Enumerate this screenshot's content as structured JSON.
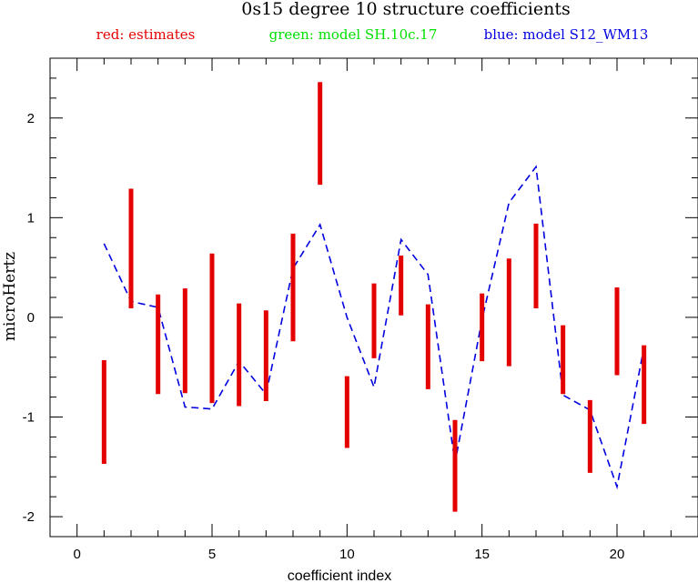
{
  "chart_data": {
    "type": "line",
    "title": "0s15 degree 10 structure coefficients",
    "legend": [
      {
        "text": "red: estimates",
        "color": "#e50000"
      },
      {
        "text": "green: model SH.10c.17",
        "color": "#00e000"
      },
      {
        "text": "blue: model S12_WM13",
        "color": "#0000e0"
      }
    ],
    "xlabel": "coefficient index",
    "ylabel": "microHertz",
    "xlim": [
      -1,
      23
    ],
    "ylim": [
      -2.2,
      2.6
    ],
    "x_ticks": [
      0,
      5,
      10,
      15,
      20
    ],
    "y_ticks": [
      -2,
      -1,
      0,
      1,
      2
    ],
    "estimates": [
      {
        "x": 1,
        "low": -1.47,
        "high": -0.43
      },
      {
        "x": 2,
        "low": 0.09,
        "high": 1.29
      },
      {
        "x": 3,
        "low": -0.77,
        "high": 0.23
      },
      {
        "x": 4,
        "low": -0.76,
        "high": 0.29
      },
      {
        "x": 5,
        "low": -0.86,
        "high": 0.64
      },
      {
        "x": 6,
        "low": -0.89,
        "high": 0.14
      },
      {
        "x": 7,
        "low": -0.84,
        "high": 0.07
      },
      {
        "x": 8,
        "low": -0.24,
        "high": 0.84
      },
      {
        "x": 9,
        "low": 1.33,
        "high": 2.36
      },
      {
        "x": 10,
        "low": -1.31,
        "high": -0.59
      },
      {
        "x": 11,
        "low": -0.41,
        "high": 0.34
      },
      {
        "x": 12,
        "low": 0.02,
        "high": 0.62
      },
      {
        "x": 13,
        "low": -0.72,
        "high": 0.13
      },
      {
        "x": 14,
        "low": -1.95,
        "high": -1.03
      },
      {
        "x": 15,
        "low": -0.44,
        "high": 0.24
      },
      {
        "x": 16,
        "low": -0.49,
        "high": 0.59
      },
      {
        "x": 17,
        "low": 0.09,
        "high": 0.94
      },
      {
        "x": 18,
        "low": -0.77,
        "high": -0.08
      },
      {
        "x": 19,
        "low": -1.56,
        "high": -0.83
      },
      {
        "x": 20,
        "low": -0.58,
        "high": 0.3
      },
      {
        "x": 21,
        "low": -1.07,
        "high": -0.28
      }
    ],
    "series": [
      {
        "name": "model S12_WM13",
        "color": "#0000e0",
        "x": [
          1,
          2,
          3,
          4,
          5,
          6,
          7,
          8,
          9,
          10,
          11,
          12,
          13,
          14,
          15,
          16,
          17,
          18,
          19,
          20,
          21
        ],
        "values": [
          0.74,
          0.16,
          0.1,
          -0.9,
          -0.92,
          -0.44,
          -0.77,
          0.49,
          0.93,
          0.0,
          -0.7,
          0.78,
          0.43,
          -1.46,
          -0.02,
          1.15,
          1.51,
          -0.78,
          -0.93,
          -1.7,
          -0.3
        ]
      }
    ]
  }
}
